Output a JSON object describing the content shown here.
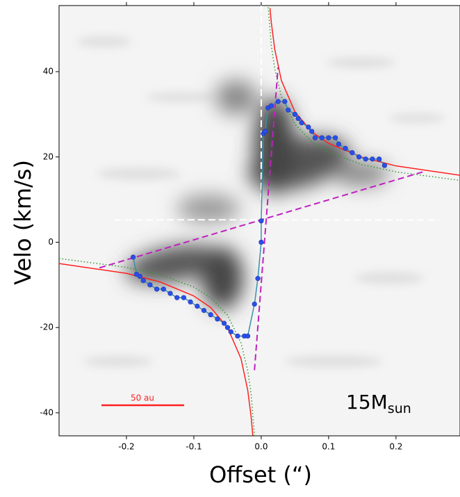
{
  "chart_data": {
    "type": "scatter",
    "xlabel": "Offset (“)",
    "ylabel": "Velo (km/s)",
    "xlim": [
      -0.3,
      0.295
    ],
    "ylim": [
      -45.4,
      55.5
    ],
    "xticks": [
      -0.2,
      -0.1,
      {
        "value": 0,
        "label": "0.0"
      },
      0.1,
      0.2
    ],
    "yticks": [
      -40,
      -20,
      0,
      20,
      40
    ],
    "series": [
      {
        "color": "#ff2020",
        "style": "solid",
        "x": [
          -0.3,
          -0.2,
          -0.15,
          -0.1,
          -0.075,
          -0.05,
          -0.03,
          -0.02,
          -0.015,
          -0.0125
        ],
        "values": [
          -5.0,
          -7.3,
          -9.3,
          -12.6,
          -15.3,
          -20.0,
          -27.3,
          -34.7,
          -40.9,
          -45.3
        ]
      },
      {
        "color": "#ff2020",
        "style": "solid",
        "x": [
          0.013,
          0.015,
          0.02,
          0.03,
          0.05,
          0.075,
          0.1,
          0.15,
          0.2,
          0.295
        ],
        "values": [
          54.9,
          51.5,
          45.3,
          37.9,
          30.6,
          25.9,
          23.2,
          19.9,
          17.9,
          15.7
        ]
      },
      {
        "color": "#2e9a2e",
        "style": "dotted",
        "x": [
          -0.3,
          -0.2,
          -0.15,
          -0.1,
          -0.075,
          -0.05,
          -0.03,
          -0.02,
          -0.015,
          -0.009
        ],
        "values": [
          -3.8,
          -5.9,
          -7.6,
          -10.5,
          -13.0,
          -17.1,
          -23.6,
          -30.1,
          -35.5,
          -47.4
        ]
      },
      {
        "color": "#2e9a2e",
        "style": "dotted",
        "x": [
          0.009,
          0.015,
          0.02,
          0.03,
          0.05,
          0.075,
          0.1,
          0.15,
          0.2,
          0.295
        ],
        "values": [
          58.0,
          46.1,
          40.7,
          34.2,
          27.7,
          23.6,
          21.1,
          18.2,
          16.5,
          14.5
        ]
      },
      {
        "color": "#c020c0",
        "style": "dashed",
        "x": [
          -0.24,
          0.24
        ],
        "values": [
          -6,
          16.5
        ]
      },
      {
        "color": "#c020c0",
        "style": "dashed",
        "x": [
          -0.01,
          0.025
        ],
        "values": [
          -30,
          41
        ]
      },
      {
        "color": "#2a50e8",
        "style": "markers",
        "x": [
          -0.19,
          -0.185,
          -0.18,
          -0.175,
          -0.165,
          -0.155,
          -0.145,
          -0.135,
          -0.125,
          -0.115,
          -0.105,
          -0.095,
          -0.085,
          -0.075,
          -0.065,
          -0.055,
          -0.05,
          -0.045,
          -0.035,
          -0.025,
          -0.02,
          -0.01,
          -0.005,
          0.0,
          0.0,
          0.003,
          0.006,
          0.01,
          0.015,
          0.025,
          0.035,
          0.04,
          0.05,
          0.055,
          0.06,
          0.07,
          0.075,
          0.08,
          0.09,
          0.1,
          0.11,
          0.115,
          0.125,
          0.135,
          0.145,
          0.155,
          0.165,
          0.175,
          0.183
        ],
        "values": [
          -3.5,
          -7.5,
          -8,
          -9,
          -10,
          -11,
          -11,
          -12,
          -13,
          -13,
          -14,
          -15,
          -16,
          -17,
          -18,
          -19,
          -20,
          -21,
          -22,
          -22,
          -22,
          -14.5,
          -8.5,
          0,
          5,
          25.5,
          26,
          31.5,
          32,
          33,
          33,
          31,
          30,
          29,
          28,
          27,
          26,
          24.5,
          24.5,
          24.5,
          24.5,
          23,
          22,
          21,
          20,
          19.5,
          19.5,
          19.5,
          18
        ]
      }
    ],
    "annotations": {
      "mass": "15M",
      "mass_sub": "sun",
      "scale": "50 au"
    }
  }
}
